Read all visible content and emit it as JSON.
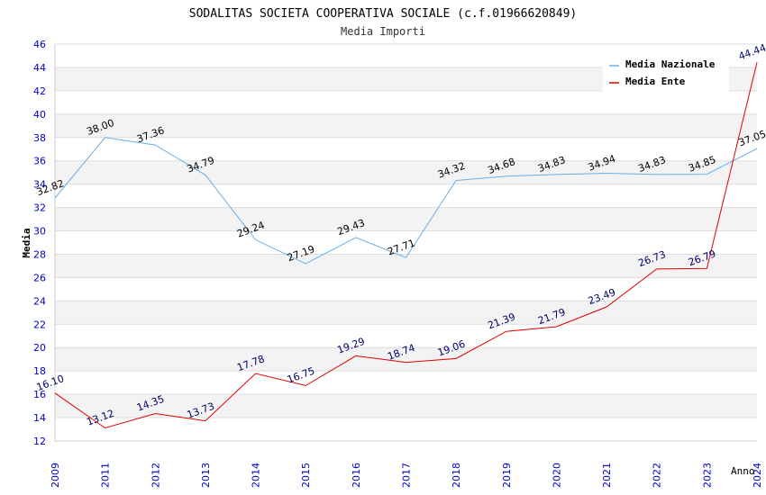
{
  "chart_data": {
    "type": "line",
    "title": "SODALITAS SOCIETA COOPERATIVA SOCIALE (c.f.01966620849)",
    "subtitle": "Media Importi",
    "xlabel": "Anno",
    "ylabel": "Media",
    "ylim": [
      12,
      46
    ],
    "yticks": [
      "12",
      "14",
      "16",
      "18",
      "20",
      "22",
      "24",
      "26",
      "28",
      "30",
      "32",
      "34",
      "36",
      "38",
      "40",
      "42",
      "44",
      "46"
    ],
    "categories": [
      "2009",
      "2011",
      "2012",
      "2013",
      "2014",
      "2015",
      "2016",
      "2017",
      "2018",
      "2019",
      "2020",
      "2021",
      "2022",
      "2023",
      "2024"
    ],
    "series": [
      {
        "name": "Media Nazionale",
        "color": "#6aaee6",
        "values": [
          32.82,
          38.0,
          37.36,
          34.79,
          29.24,
          27.19,
          29.43,
          27.71,
          34.32,
          34.68,
          34.83,
          34.94,
          34.83,
          34.85,
          37.05
        ],
        "labels": [
          "32.82",
          "38.00",
          "37.36",
          "34.79",
          "29.24",
          "27.19",
          "29.43",
          "27.71",
          "34.32",
          "34.68",
          "34.83",
          "34.94",
          "34.83",
          "34.85",
          "37.05"
        ]
      },
      {
        "name": "Media Ente",
        "color": "#e00000",
        "values": [
          16.1,
          13.12,
          14.35,
          13.73,
          17.78,
          16.75,
          19.29,
          18.74,
          19.06,
          21.39,
          21.79,
          23.49,
          26.73,
          26.79,
          44.44
        ],
        "labels": [
          "16.10",
          "13.12",
          "14.35",
          "13.73",
          "17.78",
          "16.75",
          "19.29",
          "18.74",
          "19.06",
          "21.39",
          "21.79",
          "23.49",
          "26.73",
          "26.79",
          "44.44"
        ]
      }
    ],
    "legend_position": "top-right",
    "grid": true
  }
}
